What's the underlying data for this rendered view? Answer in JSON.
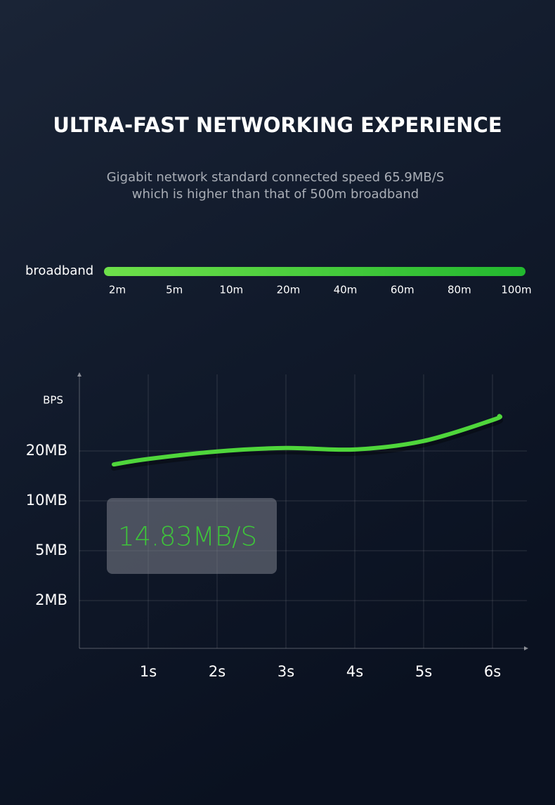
{
  "header": {
    "title": "ULTRA-FAST NETWORKING EXPERIENCE",
    "subtitle": [
      "Gigabit network standard connected speed 65.9MB/S",
      "which is higher than that of 500m broadband"
    ]
  },
  "broadband": {
    "label": "broadband",
    "scale": [
      "2m",
      "5m",
      "10m",
      "20m",
      "40m",
      "60m",
      "80m",
      "100m"
    ]
  },
  "chart_data": {
    "type": "line",
    "y_label": "BPS",
    "annotation": "14.83MB/S",
    "x": [
      0.5,
      1,
      2,
      3,
      4,
      5,
      6,
      6.1
    ],
    "series": [
      {
        "color": "#4fd63b",
        "values": [
          17.3,
          18.4,
          19.9,
          20.6,
          20.3,
          22,
          26.2,
          27
        ]
      }
    ],
    "xlim": [
      0,
      6.5
    ],
    "xticks": [
      {
        "value": 1,
        "label": "1s"
      },
      {
        "value": 2,
        "label": "2s"
      },
      {
        "value": 3,
        "label": "3s"
      },
      {
        "value": 4,
        "label": "4s"
      },
      {
        "value": 5,
        "label": "5s"
      },
      {
        "value": 6,
        "label": "6s"
      }
    ],
    "ylim": [
      0,
      35
    ],
    "yticks": [
      {
        "value": 2,
        "label": "2MB"
      },
      {
        "value": 5,
        "label": "5MB"
      },
      {
        "value": 10,
        "label": "10MB"
      },
      {
        "value": 20,
        "label": "20MB"
      }
    ],
    "grid": true
  }
}
